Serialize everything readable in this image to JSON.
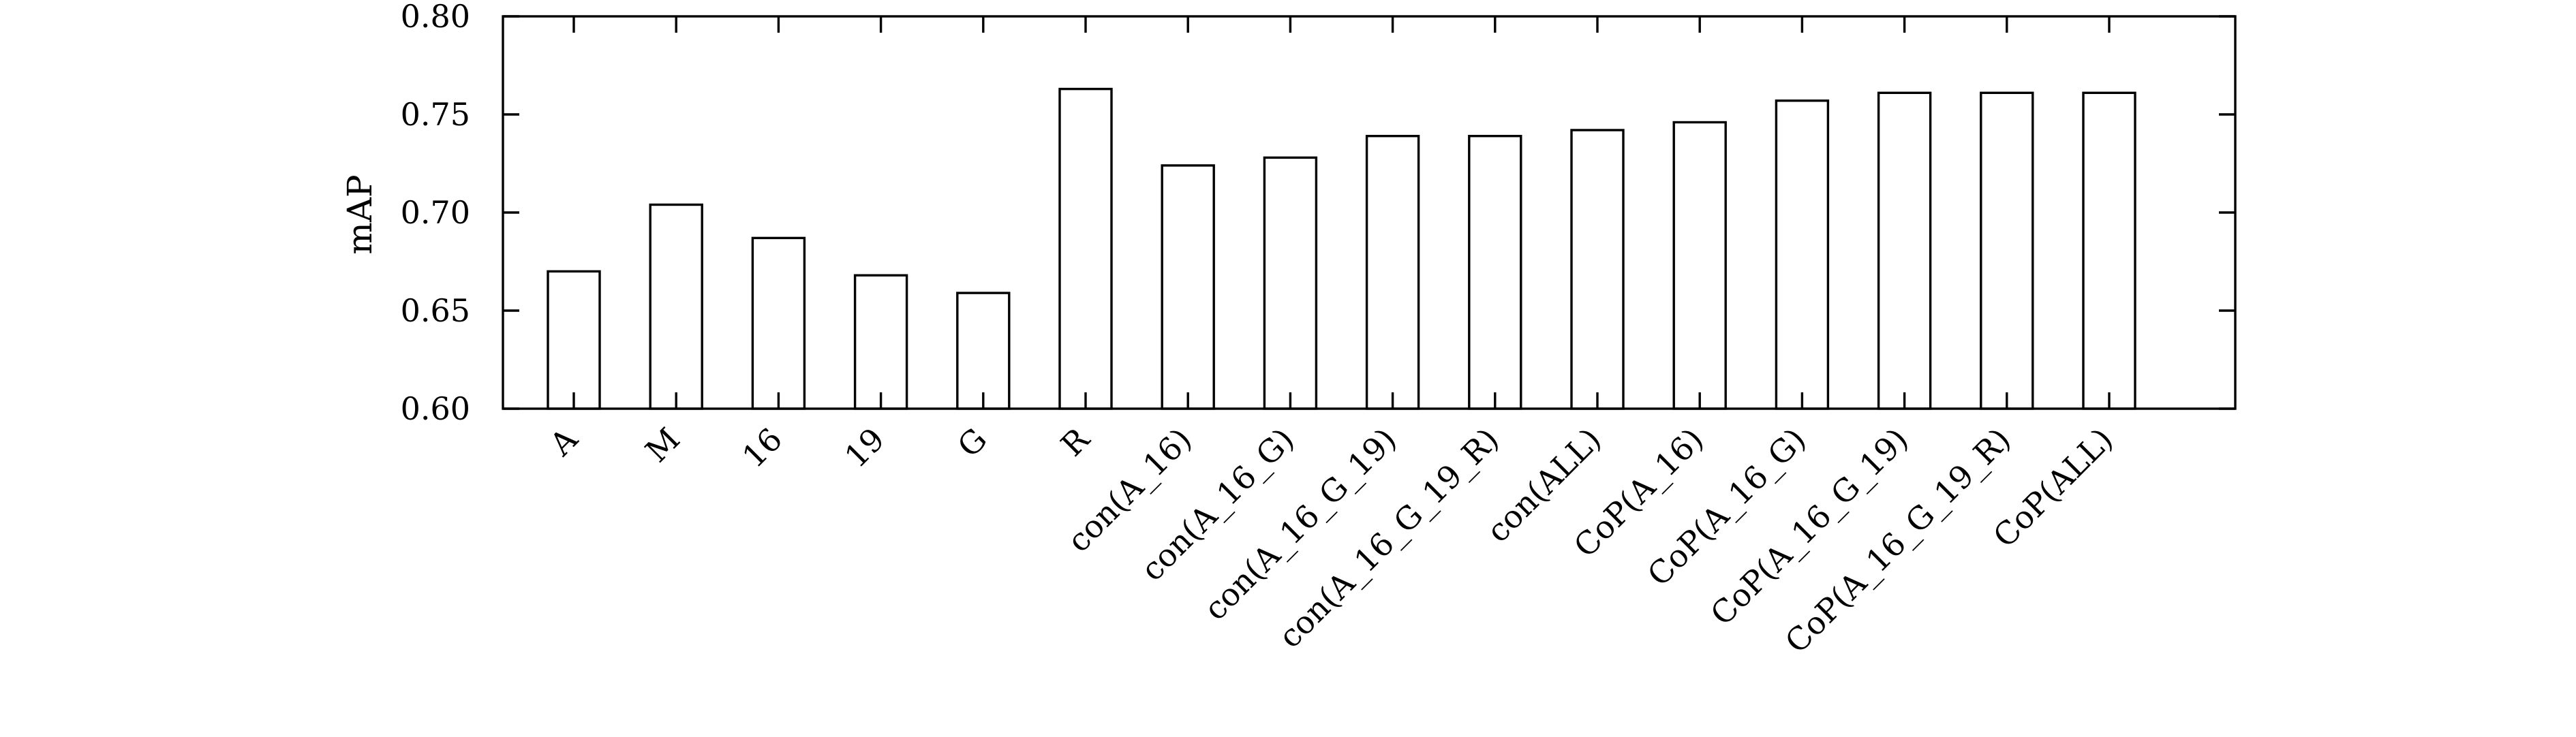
{
  "chart_data": {
    "type": "bar",
    "title": "",
    "xlabel": "",
    "ylabel": "mAP",
    "ylim": [
      0.6,
      0.8
    ],
    "yticks": [
      "0.60",
      "0.65",
      "0.70",
      "0.75",
      "0.80"
    ],
    "grid": false,
    "categories": [
      "A",
      "M",
      "16",
      "19",
      "G",
      "R",
      "con(A_16)",
      "con(A_16_G)",
      "con(A_16_G_19)",
      "con(A_16_G_19_R)",
      "con(ALL)",
      "CoP(A_16)",
      "CoP(A_16_G)",
      "CoP(A_16_G_19)",
      "CoP(A_16_G_19_R)",
      "CoP(ALL)"
    ],
    "values": [
      0.67,
      0.704,
      0.687,
      0.668,
      0.659,
      0.763,
      0.724,
      0.728,
      0.739,
      0.739,
      0.742,
      0.746,
      0.757,
      0.761,
      0.761,
      0.761
    ],
    "colors": {
      "bar_fill": "#ffffff",
      "bar_stroke": "#000000"
    }
  }
}
